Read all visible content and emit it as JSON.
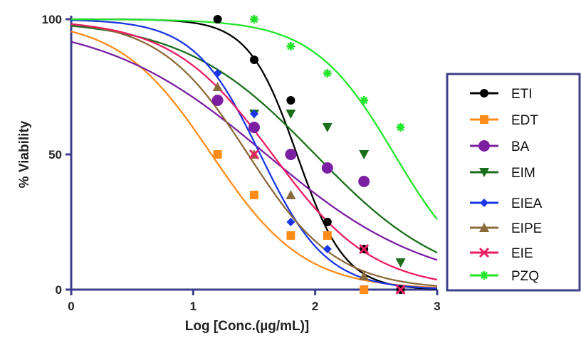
{
  "chart_data": {
    "type": "scatter",
    "title": "",
    "xlabel": "Log [Conc.(µg/mL)]",
    "ylabel": "% Viability",
    "xlim": [
      0,
      3
    ],
    "ylim": [
      0,
      100
    ],
    "x_ticks": [
      "0",
      "1",
      "2",
      "3"
    ],
    "y_ticks": [
      "0",
      "50",
      "100"
    ],
    "grid": false,
    "legend_position": "right",
    "fit_curves": true,
    "series": [
      {
        "name": "ETI",
        "color": "#000000",
        "marker": "circle",
        "ec50": 1.85,
        "hill": -2.2,
        "x": [
          1.2,
          1.5,
          1.8,
          2.1,
          2.4,
          2.7
        ],
        "y": [
          100,
          85,
          70,
          25,
          15,
          0
        ]
      },
      {
        "name": "EDT",
        "color": "#ff8c1a",
        "marker": "square",
        "ec50": 1.15,
        "hill": -1.15,
        "x": [
          1.2,
          1.5,
          1.8,
          2.1,
          2.4
        ],
        "y": [
          50,
          35,
          20,
          20,
          0
        ]
      },
      {
        "name": "BA",
        "color": "#7b1fa2",
        "marker": "circle-large",
        "ec50": 1.6,
        "hill": -0.65,
        "x": [
          1.2,
          1.5,
          1.8,
          2.1,
          2.4
        ],
        "y": [
          70,
          60,
          50,
          45,
          40
        ]
      },
      {
        "name": "EIM",
        "color": "#1b6e1b",
        "marker": "triangle-down",
        "ec50": 2.0,
        "hill": -0.8,
        "x": [
          1.5,
          1.8,
          2.1,
          2.4,
          2.7
        ],
        "y": [
          65,
          65,
          60,
          50,
          10
        ]
      },
      {
        "name": "EIEA",
        "color": "#1a35e6",
        "marker": "diamond",
        "ec50": 1.55,
        "hill": -1.6,
        "x": [
          1.2,
          1.5,
          1.8,
          2.1
        ],
        "y": [
          80,
          65,
          25,
          15
        ]
      },
      {
        "name": "EIPE",
        "color": "#8b6a3a",
        "marker": "triangle-up",
        "ec50": 1.45,
        "hill": -1.2,
        "x": [
          1.2,
          1.5,
          1.8,
          2.4
        ],
        "y": [
          75,
          50,
          35,
          5
        ]
      },
      {
        "name": "EIE",
        "color": "#e91e63",
        "marker": "x",
        "ec50": 1.65,
        "hill": -1.05,
        "x": [
          1.5,
          2.4,
          2.7
        ],
        "y": [
          50,
          15,
          0
        ]
      },
      {
        "name": "PZQ",
        "color": "#22e52a",
        "marker": "star",
        "ec50": 2.65,
        "hill": -1.3,
        "x": [
          1.5,
          1.8,
          2.1,
          2.4,
          2.7
        ],
        "y": [
          100,
          90,
          80,
          70,
          60
        ]
      }
    ]
  }
}
